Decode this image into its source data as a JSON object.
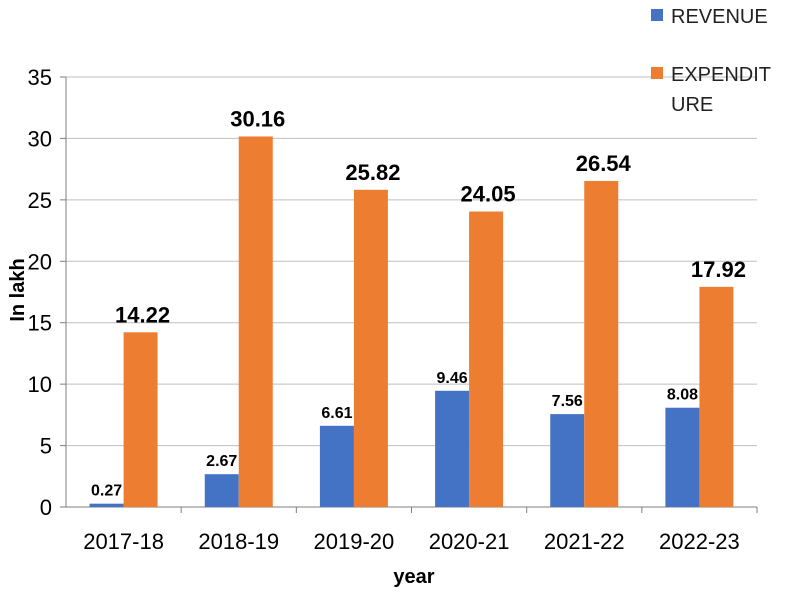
{
  "chart_data": {
    "type": "bar",
    "title": "",
    "xlabel": "year",
    "ylabel": "In lakh",
    "categories": [
      "2017-18",
      "2018-19",
      "2019-20",
      "2020-21",
      "2021-22",
      "2022-23"
    ],
    "series": [
      {
        "name": "REVENUE",
        "color": "#4472C4",
        "values": [
          0.27,
          2.67,
          6.61,
          9.46,
          7.56,
          8.08
        ],
        "labels": [
          "0.27",
          "2.67",
          "6.61",
          "9.46",
          "7.56",
          "8.08"
        ]
      },
      {
        "name": "EXPENDITURE",
        "legend_lines": [
          "EXPENDIT",
          "URE"
        ],
        "color": "#ED7D31",
        "values": [
          14.22,
          30.16,
          25.82,
          24.05,
          26.54,
          17.92
        ],
        "labels": [
          "14.22",
          "30.16",
          "25.82",
          "24.05",
          "26.54",
          "17.92"
        ]
      }
    ],
    "ylim": [
      0,
      35
    ],
    "yticks": [
      0,
      5,
      10,
      15,
      20,
      25,
      30,
      35
    ],
    "ytick_labels": [
      "0",
      "5",
      "10",
      "15",
      "20",
      "25",
      "30",
      "35"
    ],
    "grid": true,
    "legend_position": "top-right"
  }
}
